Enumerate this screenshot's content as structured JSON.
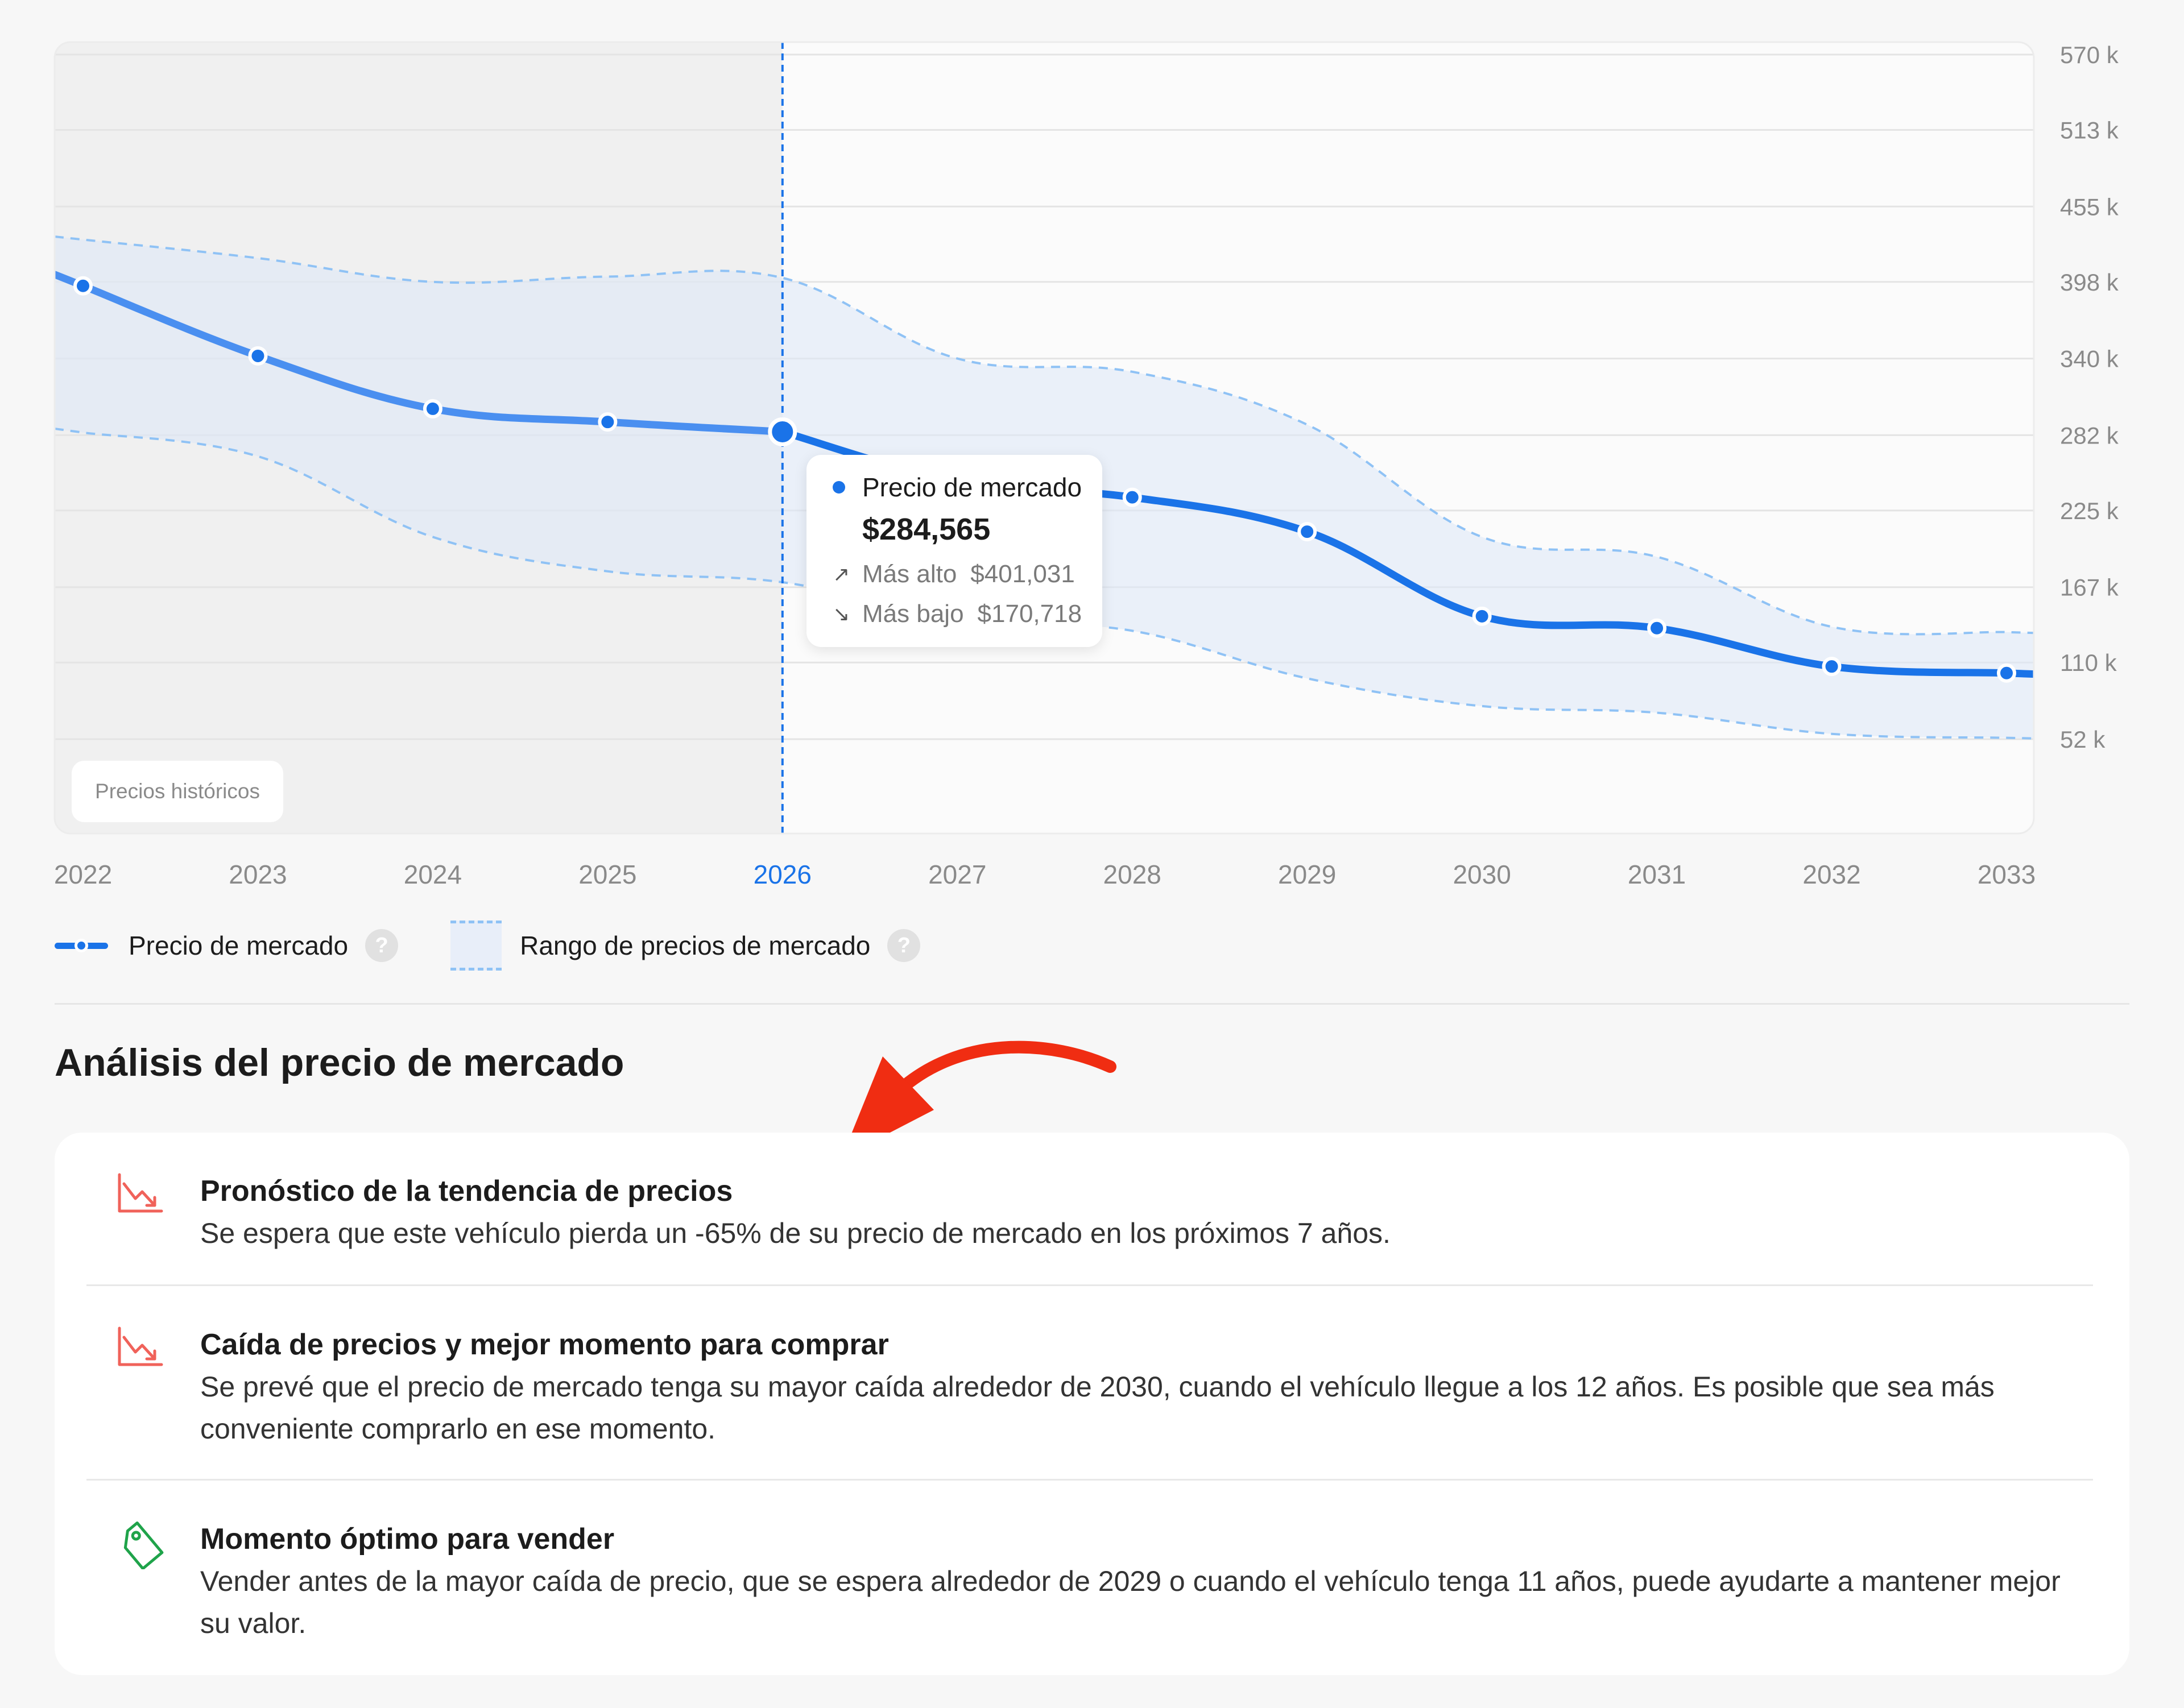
{
  "chart_data": {
    "type": "line",
    "x": [
      "2022",
      "2023",
      "2024",
      "2025",
      "2026",
      "2027",
      "2028",
      "2029",
      "2030",
      "2031",
      "2032",
      "2033"
    ],
    "series": [
      {
        "name": "Precio de mercado",
        "values": [
          395000,
          342000,
          302000,
          292000,
          284565,
          247000,
          235000,
          209000,
          145000,
          136000,
          107000,
          102000
        ]
      }
    ],
    "range": {
      "name": "Rango de precios de mercado",
      "upper": [
        430000,
        416000,
        398000,
        402000,
        401031,
        340000,
        330000,
        290000,
        205000,
        190000,
        137000,
        133000
      ],
      "lower": [
        284000,
        266000,
        205000,
        179000,
        170718,
        143000,
        134000,
        98000,
        77000,
        72000,
        56000,
        53000
      ]
    },
    "y_ticks": [
      {
        "value": 570000,
        "label": "570 k"
      },
      {
        "value": 513000,
        "label": "513 k"
      },
      {
        "value": 455000,
        "label": "455 k"
      },
      {
        "value": 398000,
        "label": "398 k"
      },
      {
        "value": 340000,
        "label": "340 k"
      },
      {
        "value": 282000,
        "label": "282 k"
      },
      {
        "value": 225000,
        "label": "225 k"
      },
      {
        "value": 167000,
        "label": "167 k"
      },
      {
        "value": 110000,
        "label": "110 k"
      },
      {
        "value": 52000,
        "label": "52 k"
      }
    ],
    "ylim": [
      0,
      570000
    ],
    "highlight_x": "2026",
    "historical_label": "Precios históricos",
    "grid": true,
    "colors": {
      "line": "#1a73e8",
      "range_fill": "#e8eef9",
      "range_border": "#8fc2f5",
      "historical_bg": "#f0f0f0"
    }
  },
  "tooltip": {
    "series": "Precio de mercado",
    "value": "$284,565",
    "high_label": "Más alto",
    "high_value": "$401,031",
    "low_label": "Más bajo",
    "low_value": "$170,718"
  },
  "legend": {
    "line_label": "Precio de mercado",
    "range_label": "Rango de precios de mercado",
    "help": "?"
  },
  "analysis": {
    "title": "Análisis del precio de mercado",
    "items": [
      {
        "icon": "trend-down-icon",
        "title": "Pronóstico de la tendencia de precios",
        "text": "Se espera que este vehículo pierda un -65% de su precio de mercado en los próximos 7 años."
      },
      {
        "icon": "trend-down-icon",
        "title": "Caída de precios y mejor momento para comprar",
        "text": "Se prevé que el precio de mercado tenga su mayor caída alrededor de 2030, cuando el vehículo llegue a los 12 años. Es posible que sea más conveniente comprarlo en ese momento."
      },
      {
        "icon": "price-tag-icon",
        "title": "Momento óptimo para vender",
        "text": "Vender antes de la mayor caída de precio, que se espera alrededor de 2029 o cuando el vehículo tenga 11 años, puede ayudarte a mantener mejor su valor."
      }
    ]
  },
  "colors": {
    "accent": "#1a73e8",
    "arrow": "#f02d12",
    "down_icon": "#f0625a",
    "tag_icon": "#1fa34a"
  }
}
